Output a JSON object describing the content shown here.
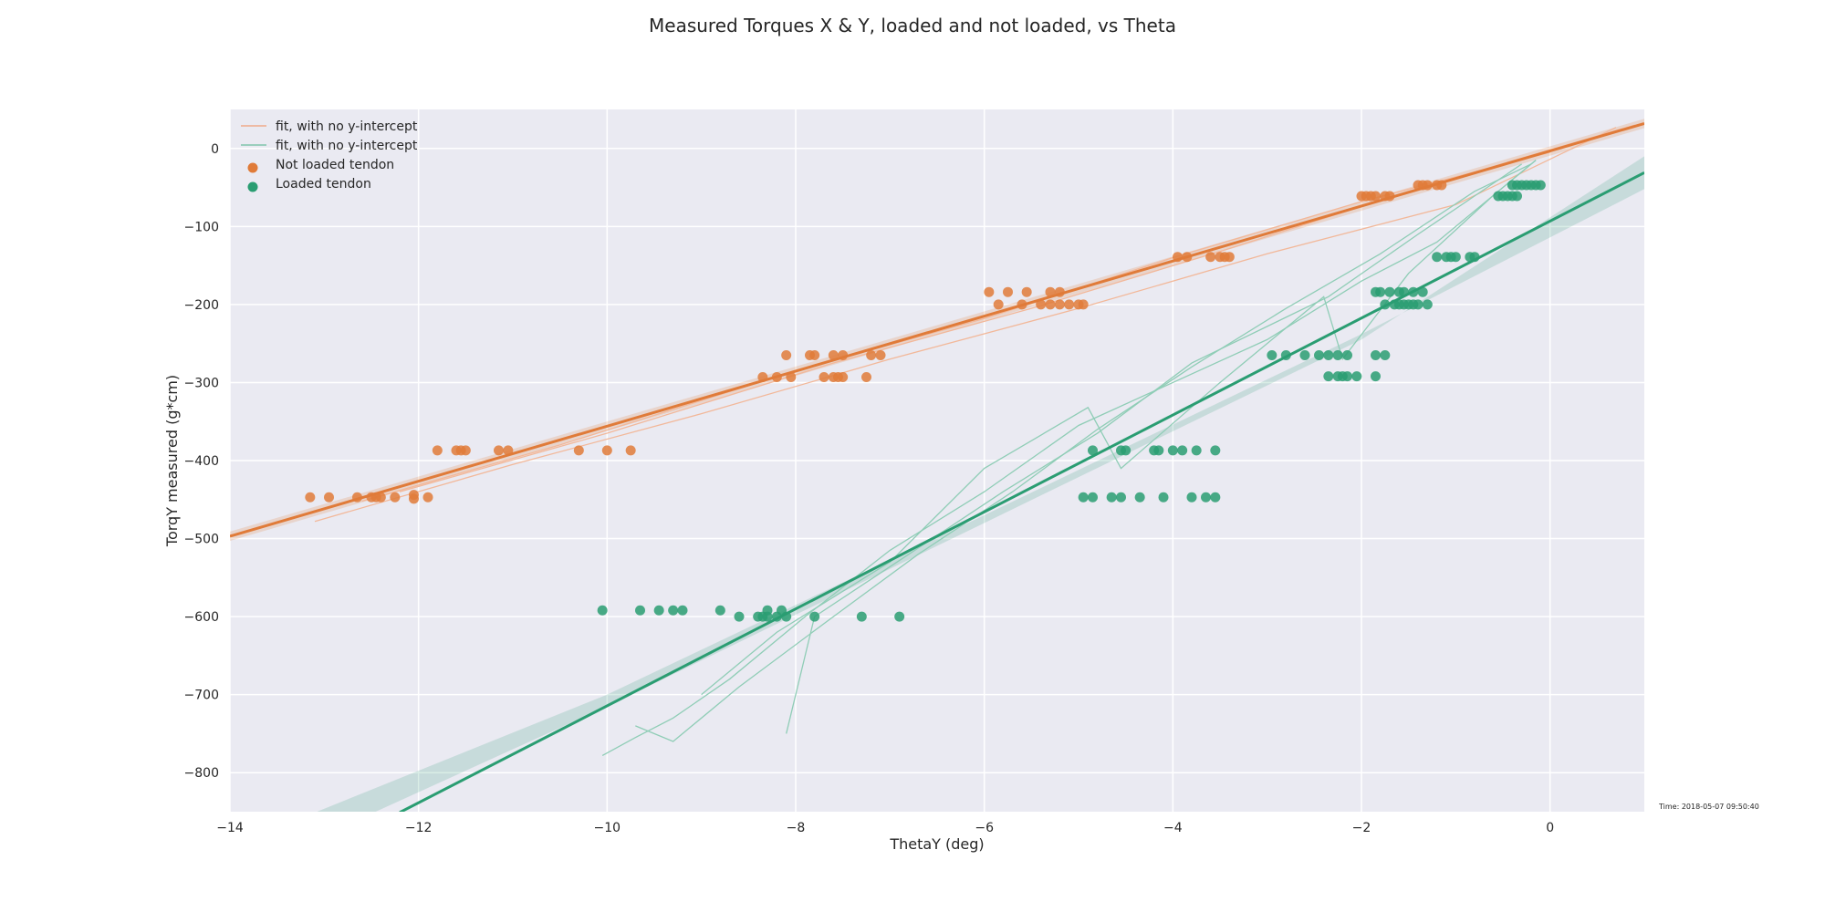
{
  "chart_data": {
    "type": "scatter",
    "title": "Measured Torques X & Y, loaded and not loaded, vs Theta",
    "xlabel": "ThetaY (deg)",
    "ylabel": "TorqY measured (g*cm)",
    "xlim": [
      -14,
      1
    ],
    "ylim": [
      -850,
      50
    ],
    "xticks": [
      -14,
      -12,
      -10,
      -8,
      -6,
      -4,
      -2,
      0
    ],
    "xtick_labels": [
      "−14",
      "−12",
      "−10",
      "−8",
      "−6",
      "−4",
      "−2",
      "0"
    ],
    "yticks": [
      0,
      -100,
      -200,
      -300,
      -400,
      -500,
      -600,
      -700,
      -800
    ],
    "ytick_labels": [
      "0",
      "−100",
      "−200",
      "−300",
      "−400",
      "−500",
      "−600",
      "−700",
      "−800"
    ],
    "grid": true,
    "legend_position": "top-left",
    "timestamp": "Time: 2018-05-07 09:50:40",
    "legend": [
      {
        "label": "fit, with no y-intercept",
        "kind": "line",
        "color": "#f0a98a"
      },
      {
        "label": "fit, with no y-intercept",
        "kind": "line",
        "color": "#7fc4ab"
      },
      {
        "label": "Not loaded tendon",
        "kind": "marker",
        "color": "#e07b39"
      },
      {
        "label": "Loaded tendon",
        "kind": "marker",
        "color": "#2a9d72"
      }
    ],
    "series": [
      {
        "name": "Not loaded tendon",
        "color": "#e07b39",
        "fit_line": [
          [
            -14,
            -497
          ],
          [
            1,
            32
          ]
        ],
        "band_half_width": 6,
        "thin_fits": [
          [
            [
              -13.1,
              -478
            ],
            [
              -11.0,
              -405
            ],
            [
              -9.0,
              -340
            ],
            [
              -7.0,
              -270
            ],
            [
              -5.0,
              -205
            ],
            [
              -3.0,
              -135
            ],
            [
              -1.0,
              -72
            ],
            [
              0.7,
              27
            ]
          ],
          [
            [
              -12.6,
              -452
            ],
            [
              -10.5,
              -380
            ],
            [
              -8.0,
              -285
            ],
            [
              -6.0,
              -218
            ],
            [
              -4.0,
              -140
            ],
            [
              -2.0,
              -68
            ],
            [
              0,
              -5
            ]
          ],
          [
            [
              -12.2,
              -440
            ],
            [
              -10.0,
              -365
            ],
            [
              -7.6,
              -275
            ],
            [
              -5.5,
              -205
            ],
            [
              -3.5,
              -132
            ],
            [
              -1.5,
              -55
            ],
            [
              0.9,
              30
            ]
          ]
        ],
        "points": [
          [
            -13.15,
            -447
          ],
          [
            -12.95,
            -447
          ],
          [
            -12.65,
            -447
          ],
          [
            -12.5,
            -447
          ],
          [
            -12.45,
            -447
          ],
          [
            -12.4,
            -447
          ],
          [
            -12.25,
            -447
          ],
          [
            -12.05,
            -449
          ],
          [
            -12.05,
            -444
          ],
          [
            -11.9,
            -447
          ],
          [
            -11.8,
            -387
          ],
          [
            -11.6,
            -387
          ],
          [
            -11.55,
            -387
          ],
          [
            -11.5,
            -387
          ],
          [
            -11.15,
            -387
          ],
          [
            -11.05,
            -387
          ],
          [
            -10.3,
            -387
          ],
          [
            -10.0,
            -387
          ],
          [
            -9.75,
            -387
          ],
          [
            -8.35,
            -293
          ],
          [
            -8.2,
            -293
          ],
          [
            -8.05,
            -293
          ],
          [
            -7.7,
            -293
          ],
          [
            -7.6,
            -293
          ],
          [
            -7.55,
            -293
          ],
          [
            -7.5,
            -293
          ],
          [
            -7.25,
            -293
          ],
          [
            -8.1,
            -265
          ],
          [
            -7.85,
            -265
          ],
          [
            -7.8,
            -265
          ],
          [
            -7.6,
            -265
          ],
          [
            -7.5,
            -265
          ],
          [
            -7.2,
            -265
          ],
          [
            -7.1,
            -265
          ],
          [
            -5.95,
            -184
          ],
          [
            -5.75,
            -184
          ],
          [
            -5.55,
            -184
          ],
          [
            -5.3,
            -184
          ],
          [
            -5.2,
            -184
          ],
          [
            -5.85,
            -200
          ],
          [
            -5.6,
            -200
          ],
          [
            -5.4,
            -200
          ],
          [
            -5.3,
            -200
          ],
          [
            -5.2,
            -200
          ],
          [
            -5.1,
            -200
          ],
          [
            -5.0,
            -200
          ],
          [
            -4.95,
            -200
          ],
          [
            -3.95,
            -139
          ],
          [
            -3.85,
            -139
          ],
          [
            -3.6,
            -139
          ],
          [
            -3.5,
            -139
          ],
          [
            -3.45,
            -139
          ],
          [
            -3.4,
            -139
          ],
          [
            -2.0,
            -61
          ],
          [
            -1.95,
            -61
          ],
          [
            -1.9,
            -61
          ],
          [
            -1.85,
            -61
          ],
          [
            -1.75,
            -61
          ],
          [
            -1.7,
            -61
          ],
          [
            -1.4,
            -47
          ],
          [
            -1.35,
            -47
          ],
          [
            -1.3,
            -47
          ],
          [
            -1.2,
            -47
          ],
          [
            -1.15,
            -47
          ]
        ]
      },
      {
        "name": "Loaded tendon",
        "color": "#2a9d72",
        "fit_line": [
          [
            -12.2,
            -851
          ],
          [
            1,
            -31
          ]
        ],
        "band": [
          [
            -14,
            -935,
            -895
          ],
          [
            -10,
            -715,
            -700
          ],
          [
            -6,
            -480,
            -470
          ],
          [
            -2,
            -245,
            -238
          ],
          [
            1,
            -10,
            -52
          ]
        ],
        "thin_fits": [
          [
            [
              -10.05,
              -778
            ],
            [
              -9.7,
              -755
            ],
            [
              -9.3,
              -730
            ],
            [
              -8.7,
              -680
            ],
            [
              -7.9,
              -600
            ],
            [
              -7.0,
              -515
            ],
            [
              -6.0,
              -440
            ],
            [
              -5.0,
              -355
            ],
            [
              -4.0,
              -300
            ],
            [
              -3.0,
              -245
            ],
            [
              -2.0,
              -170
            ],
            [
              -1.2,
              -120
            ],
            [
              -0.15,
              -15
            ]
          ],
          [
            [
              -9.7,
              -740
            ],
            [
              -9.3,
              -760
            ],
            [
              -8.6,
              -690
            ],
            [
              -7.6,
              -600
            ],
            [
              -6.7,
              -520
            ],
            [
              -5.7,
              -440
            ],
            [
              -4.8,
              -360
            ],
            [
              -3.8,
              -280
            ],
            [
              -2.8,
              -205
            ],
            [
              -1.8,
              -135
            ],
            [
              -0.8,
              -55
            ],
            [
              -0.2,
              -20
            ]
          ],
          [
            [
              -9.0,
              -700
            ],
            [
              -8.2,
              -620
            ],
            [
              -7.0,
              -530
            ],
            [
              -6.0,
              -410
            ],
            [
              -4.9,
              -332
            ],
            [
              -4.55,
              -410
            ],
            [
              -3.5,
              -300
            ],
            [
              -2.4,
              -190
            ],
            [
              -2.2,
              -270
            ],
            [
              -1.5,
              -160
            ],
            [
              -0.6,
              -60
            ],
            [
              -0.15,
              -15
            ]
          ],
          [
            [
              -8.1,
              -750
            ],
            [
              -7.8,
              -600
            ],
            [
              -6.8,
              -520
            ],
            [
              -5.8,
              -440
            ],
            [
              -4.8,
              -365
            ],
            [
              -3.8,
              -275
            ],
            [
              -2.35,
              -190
            ],
            [
              -1.4,
              -110
            ],
            [
              -0.3,
              -20
            ]
          ]
        ],
        "points": [
          [
            -10.05,
            -592
          ],
          [
            -9.65,
            -592
          ],
          [
            -9.45,
            -592
          ],
          [
            -9.3,
            -592
          ],
          [
            -9.2,
            -592
          ],
          [
            -8.8,
            -592
          ],
          [
            -8.3,
            -592
          ],
          [
            -8.15,
            -592
          ],
          [
            -8.6,
            -600
          ],
          [
            -8.4,
            -600
          ],
          [
            -8.35,
            -600
          ],
          [
            -8.3,
            -600
          ],
          [
            -8.2,
            -600
          ],
          [
            -8.1,
            -600
          ],
          [
            -7.8,
            -600
          ],
          [
            -7.3,
            -600
          ],
          [
            -6.9,
            -600
          ],
          [
            -4.85,
            -387
          ],
          [
            -4.55,
            -387
          ],
          [
            -4.5,
            -387
          ],
          [
            -4.2,
            -387
          ],
          [
            -4.15,
            -387
          ],
          [
            -4.0,
            -387
          ],
          [
            -3.9,
            -387
          ],
          [
            -3.75,
            -387
          ],
          [
            -3.55,
            -387
          ],
          [
            -4.95,
            -447
          ],
          [
            -4.85,
            -447
          ],
          [
            -4.65,
            -447
          ],
          [
            -4.55,
            -447
          ],
          [
            -4.35,
            -447
          ],
          [
            -4.1,
            -447
          ],
          [
            -3.8,
            -447
          ],
          [
            -3.65,
            -447
          ],
          [
            -3.55,
            -447
          ],
          [
            -2.95,
            -265
          ],
          [
            -2.8,
            -265
          ],
          [
            -2.6,
            -265
          ],
          [
            -2.45,
            -265
          ],
          [
            -2.35,
            -265
          ],
          [
            -2.25,
            -265
          ],
          [
            -2.15,
            -265
          ],
          [
            -1.85,
            -265
          ],
          [
            -1.75,
            -265
          ],
          [
            -2.35,
            -292
          ],
          [
            -2.25,
            -292
          ],
          [
            -2.2,
            -292
          ],
          [
            -2.15,
            -292
          ],
          [
            -2.05,
            -292
          ],
          [
            -1.85,
            -292
          ],
          [
            -1.85,
            -184
          ],
          [
            -1.8,
            -184
          ],
          [
            -1.7,
            -184
          ],
          [
            -1.6,
            -184
          ],
          [
            -1.55,
            -184
          ],
          [
            -1.45,
            -184
          ],
          [
            -1.35,
            -184
          ],
          [
            -1.75,
            -200
          ],
          [
            -1.65,
            -200
          ],
          [
            -1.6,
            -200
          ],
          [
            -1.55,
            -200
          ],
          [
            -1.5,
            -200
          ],
          [
            -1.45,
            -200
          ],
          [
            -1.4,
            -200
          ],
          [
            -1.3,
            -200
          ],
          [
            -1.2,
            -139
          ],
          [
            -1.1,
            -139
          ],
          [
            -1.05,
            -139
          ],
          [
            -1.0,
            -139
          ],
          [
            -0.85,
            -139
          ],
          [
            -0.8,
            -139
          ],
          [
            -0.55,
            -61
          ],
          [
            -0.5,
            -61
          ],
          [
            -0.45,
            -61
          ],
          [
            -0.4,
            -61
          ],
          [
            -0.35,
            -61
          ],
          [
            -0.4,
            -47
          ],
          [
            -0.35,
            -47
          ],
          [
            -0.3,
            -47
          ],
          [
            -0.25,
            -47
          ],
          [
            -0.2,
            -47
          ],
          [
            -0.15,
            -47
          ],
          [
            -0.1,
            -47
          ]
        ]
      }
    ]
  }
}
